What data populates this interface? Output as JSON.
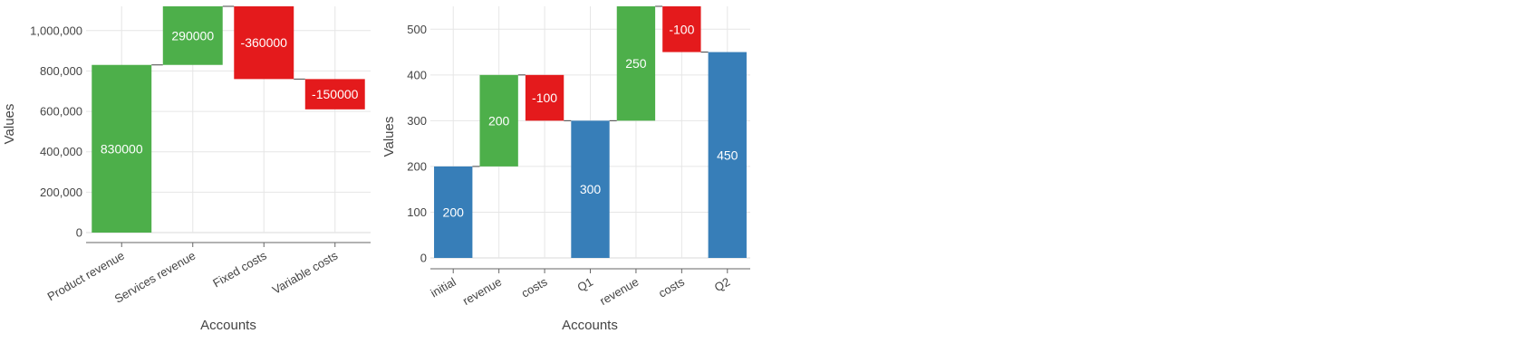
{
  "colors": {
    "increase": "#4daf4a",
    "decrease": "#e41a1c",
    "total": "#377eb8",
    "connector": "#444444",
    "grid": "#e6e6e6",
    "axis": "#666666"
  },
  "chart_data": [
    {
      "type": "waterfall",
      "xlabel": "Accounts",
      "ylabel": "Values",
      "ylim": [
        0,
        1120000
      ],
      "yticks": [
        0,
        200000,
        400000,
        600000,
        800000,
        1000000
      ],
      "ytick_labels": [
        "0",
        "200,000",
        "400,000",
        "600,000",
        "800,000",
        "1,000,000"
      ],
      "categories": [
        "Product revenue",
        "Services revenue",
        "Fixed costs",
        "Variable costs"
      ],
      "values": [
        830000,
        290000,
        -360000,
        -150000
      ],
      "measure": [
        "relative",
        "relative",
        "relative",
        "relative"
      ],
      "bar_labels": [
        "830000",
        "290000",
        "-360000",
        "-150000"
      ],
      "grid": true
    },
    {
      "type": "waterfall",
      "xlabel": "Accounts",
      "ylabel": "Values",
      "ylim": [
        0,
        550
      ],
      "yticks": [
        0,
        100,
        200,
        300,
        400,
        500
      ],
      "ytick_labels": [
        "0",
        "100",
        "200",
        "300",
        "400",
        "500"
      ],
      "categories": [
        "initial",
        "revenue",
        "costs",
        "Q1",
        "revenue",
        "costs",
        "Q2"
      ],
      "values": [
        200,
        200,
        -100,
        300,
        250,
        -100,
        450
      ],
      "measure": [
        "total",
        "relative",
        "relative",
        "total",
        "relative",
        "relative",
        "total"
      ],
      "bar_labels": [
        "200",
        "200",
        "-100",
        "300",
        "250",
        "-100",
        "450"
      ],
      "grid": true
    }
  ]
}
